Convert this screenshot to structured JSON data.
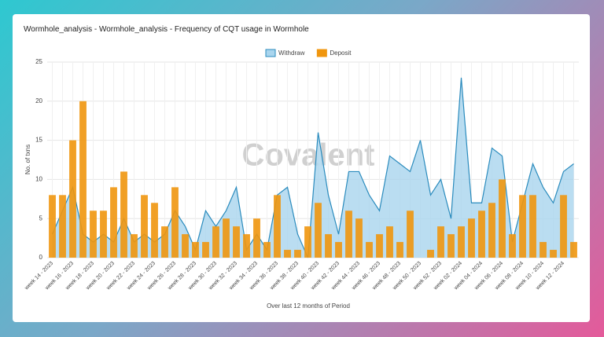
{
  "header": {
    "title": "Wormhole_analysis - Wormhole_analysis - Frequency of CQT usage in Wormhole"
  },
  "watermark": "Covalent",
  "chart_data": {
    "type": "bar",
    "y_label": "No. of txns",
    "x_label": "Over last 12 months of Period",
    "categories": [
      "week 14 - 2023",
      null,
      "week 16 - 2023",
      null,
      "week 18 - 2023",
      null,
      "week 20 - 2023",
      null,
      "week 22 - 2023",
      null,
      "week 24 - 2023",
      null,
      "week 26 - 2023",
      null,
      "week 28 - 2023",
      null,
      "week 30 - 2023",
      null,
      "week 32 - 2023",
      null,
      "week 34 - 2023",
      null,
      "week 36 - 2023",
      null,
      "week 38 - 2023",
      null,
      "week 40 - 2023",
      null,
      "week 42 - 2023",
      null,
      "week 44 - 2023",
      null,
      "week 46 - 2023",
      null,
      "week 48 - 2023",
      null,
      "week 50 - 2023",
      null,
      "week 52 - 2023",
      null,
      "week 02 - 2024",
      null,
      "week 04 - 2024",
      null,
      "week 06 - 2024",
      null,
      "week 08 - 2024",
      null,
      "week 10 - 2024",
      null,
      "week 12 - 2024",
      null
    ],
    "series": [
      {
        "name": "Withdraw",
        "type": "area",
        "color": "#2a8bbd",
        "fill": "#a9d5ee",
        "values": [
          3,
          6,
          9,
          3,
          2,
          3,
          2,
          5,
          2,
          3,
          2,
          3,
          6,
          4,
          1,
          6,
          4,
          6,
          9,
          1,
          3,
          1,
          8,
          9,
          3,
          0,
          16,
          8,
          3,
          11,
          11,
          8,
          6,
          13,
          12,
          11,
          15,
          8,
          10,
          5,
          23,
          7,
          7,
          14,
          13,
          2,
          7,
          12,
          9,
          7,
          11,
          12
        ]
      },
      {
        "name": "Deposit",
        "type": "bar",
        "color": "#f0960e",
        "values": [
          8,
          8,
          15,
          20,
          6,
          6,
          9,
          11,
          3,
          8,
          7,
          4,
          9,
          3,
          2,
          2,
          4,
          5,
          4,
          3,
          5,
          2,
          8,
          1,
          1,
          4,
          7,
          3,
          2,
          6,
          5,
          2,
          3,
          4,
          2,
          6,
          0,
          1,
          4,
          3,
          4,
          5,
          6,
          7,
          10,
          3,
          8,
          8,
          2,
          1,
          8,
          2
        ]
      }
    ],
    "ylim": [
      0,
      25
    ],
    "yticks": [
      0,
      5,
      10,
      15,
      20,
      25
    ],
    "grid": true,
    "legend": "top"
  }
}
